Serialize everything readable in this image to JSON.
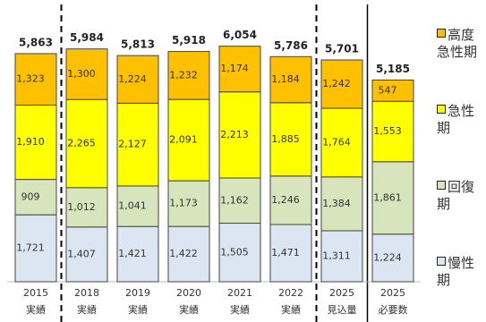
{
  "chart_data": {
    "type": "stacked-bar",
    "categories": [
      "2015\n実績",
      "2018\n実績",
      "2019\n実績",
      "2020\n実績",
      "2021\n実績",
      "2022\n実績",
      "2025\n見込量",
      "2025\n必要数"
    ],
    "series": [
      {
        "name": "慢性期",
        "color": "#dce6f2",
        "values": [
          1721,
          1407,
          1421,
          1422,
          1505,
          1471,
          1311,
          1224
        ]
      },
      {
        "name": "回復期",
        "color": "#d7e4bc",
        "values": [
          909,
          1012,
          1041,
          1173,
          1162,
          1246,
          1384,
          1861
        ]
      },
      {
        "name": "急性期",
        "color": "#ffff00",
        "values": [
          1910,
          2265,
          2127,
          2091,
          2213,
          1885,
          1764,
          1553
        ]
      },
      {
        "name": "高度急性期",
        "color": "#ffc000",
        "values": [
          1323,
          1300,
          1224,
          1232,
          1174,
          1184,
          1242,
          547
        ]
      }
    ],
    "totals": [
      5863,
      5984,
      5813,
      5918,
      6054,
      5786,
      5701,
      5185
    ],
    "value_labels": [
      [
        "1,721",
        "1,407",
        "1,421",
        "1,422",
        "1,505",
        "1,471",
        "1,311",
        "1,224"
      ],
      [
        "909",
        "1,012",
        "1,041",
        "1,173",
        "1,162",
        "1,246",
        "1,384",
        "1,861"
      ],
      [
        "1,910",
        "2,265",
        "2,127",
        "2,091",
        "2,213",
        "1,885",
        "1,764",
        "1,553"
      ],
      [
        "1,323",
        "1,300",
        "1,224",
        "1,232",
        "1,174",
        "1,184",
        "1,242",
        "547"
      ]
    ],
    "total_labels": [
      "5,863",
      "5,984",
      "5,813",
      "5,918",
      "6,054",
      "5,786",
      "5,701",
      "5,185"
    ]
  }
}
